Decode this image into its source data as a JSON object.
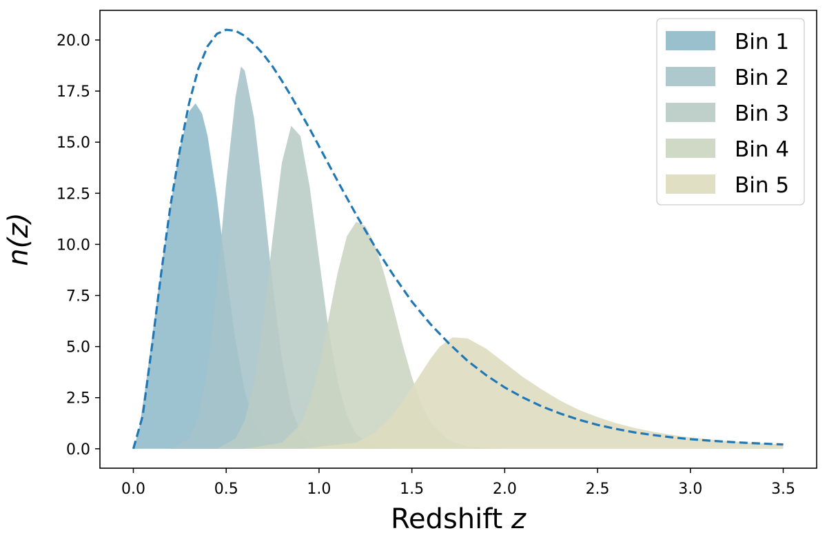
{
  "chart_data": {
    "type": "area",
    "xlabel": "Redshift",
    "xlabel_var": "z",
    "ylabel": "n(z)",
    "xlim": [
      -0.18,
      3.68
    ],
    "ylim": [
      -0.95,
      21.45
    ],
    "x_ticks": [
      0.0,
      0.5,
      1.0,
      1.5,
      2.0,
      2.5,
      3.0,
      3.5
    ],
    "x_tick_labels": [
      "0.0",
      "0.5",
      "1.0",
      "1.5",
      "2.0",
      "2.5",
      "3.0",
      "3.5"
    ],
    "y_ticks": [
      0.0,
      2.5,
      5.0,
      7.5,
      10.0,
      12.5,
      15.0,
      17.5,
      20.0
    ],
    "y_tick_labels": [
      "0.0",
      "2.5",
      "5.0",
      "7.5",
      "10.0",
      "12.5",
      "15.0",
      "17.5",
      "20.0"
    ],
    "grid": false,
    "legend_position": "top-right",
    "total_curve": {
      "style": "dashed",
      "color": "#1f77b4",
      "x": [
        0.0,
        0.05,
        0.1,
        0.15,
        0.2,
        0.25,
        0.3,
        0.35,
        0.4,
        0.45,
        0.5,
        0.55,
        0.6,
        0.65,
        0.7,
        0.75,
        0.8,
        0.85,
        0.9,
        0.95,
        1.0,
        1.1,
        1.2,
        1.3,
        1.4,
        1.5,
        1.6,
        1.7,
        1.8,
        1.9,
        2.0,
        2.1,
        2.2,
        2.3,
        2.4,
        2.5,
        2.6,
        2.7,
        2.8,
        2.9,
        3.0,
        3.1,
        3.2,
        3.3,
        3.4,
        3.5
      ],
      "y": [
        0.0,
        1.6,
        5.0,
        8.6,
        11.9,
        14.6,
        16.9,
        18.6,
        19.7,
        20.3,
        20.5,
        20.45,
        20.2,
        19.8,
        19.3,
        18.7,
        18.0,
        17.25,
        16.45,
        15.65,
        14.8,
        13.1,
        11.45,
        9.9,
        8.5,
        7.2,
        6.1,
        5.15,
        4.3,
        3.6,
        3.0,
        2.5,
        2.07,
        1.72,
        1.42,
        1.17,
        0.97,
        0.8,
        0.67,
        0.56,
        0.47,
        0.4,
        0.34,
        0.29,
        0.25,
        0.21
      ]
    },
    "series": [
      {
        "name": "Bin 1",
        "color": "#8fb9c9",
        "x": [
          0.0,
          0.03,
          0.06,
          0.1,
          0.15,
          0.2,
          0.25,
          0.3,
          0.335,
          0.37,
          0.4,
          0.45,
          0.5,
          0.55,
          0.6,
          0.65,
          0.7,
          0.8,
          0.9
        ],
        "values": [
          0.0,
          0.9,
          2.7,
          5.4,
          8.8,
          11.9,
          14.7,
          16.5,
          16.9,
          16.4,
          15.3,
          12.3,
          8.6,
          5.3,
          2.8,
          1.3,
          0.5,
          0.05,
          0.0
        ]
      },
      {
        "name": "Bin 2",
        "color": "#a5c3c8",
        "x": [
          0.2,
          0.3,
          0.35,
          0.4,
          0.45,
          0.5,
          0.55,
          0.58,
          0.6,
          0.65,
          0.7,
          0.75,
          0.8,
          0.85,
          0.9,
          0.95,
          1.0
        ],
        "values": [
          0.0,
          0.5,
          1.6,
          4.0,
          8.0,
          13.0,
          17.2,
          18.7,
          18.5,
          16.2,
          12.3,
          8.0,
          4.4,
          2.0,
          0.8,
          0.25,
          0.0
        ]
      },
      {
        "name": "Bin 3",
        "color": "#b8cbc5",
        "x": [
          0.45,
          0.55,
          0.6,
          0.65,
          0.7,
          0.75,
          0.8,
          0.85,
          0.9,
          0.95,
          1.0,
          1.05,
          1.1,
          1.15,
          1.2,
          1.3,
          1.4
        ],
        "values": [
          0.0,
          0.5,
          1.4,
          3.2,
          6.3,
          10.3,
          14.0,
          15.8,
          15.3,
          12.8,
          9.3,
          5.9,
          3.3,
          1.6,
          0.7,
          0.1,
          0.0
        ]
      },
      {
        "name": "Bin 4",
        "color": "#cbd4c0",
        "x": [
          0.6,
          0.8,
          0.9,
          0.95,
          1.0,
          1.05,
          1.1,
          1.15,
          1.2,
          1.25,
          1.3,
          1.35,
          1.4,
          1.45,
          1.5,
          1.55,
          1.6,
          1.7,
          1.8,
          2.0
        ],
        "values": [
          0.0,
          0.3,
          1.2,
          2.3,
          4.0,
          6.3,
          8.6,
          10.4,
          11.1,
          10.9,
          10.0,
          8.6,
          6.9,
          5.1,
          3.5,
          2.2,
          1.3,
          0.4,
          0.1,
          0.0
        ]
      },
      {
        "name": "Bin 5",
        "color": "#dddcbe",
        "x": [
          0.9,
          1.2,
          1.3,
          1.4,
          1.5,
          1.6,
          1.65,
          1.72,
          1.8,
          1.9,
          2.0,
          2.1,
          2.2,
          2.3,
          2.4,
          2.5,
          2.6,
          2.7,
          2.8,
          2.9,
          3.0,
          3.1,
          3.2,
          3.3,
          3.4,
          3.5
        ],
        "values": [
          0.0,
          0.3,
          0.8,
          1.7,
          3.0,
          4.4,
          5.0,
          5.45,
          5.4,
          4.9,
          4.2,
          3.5,
          2.9,
          2.35,
          1.9,
          1.55,
          1.25,
          1.02,
          0.83,
          0.68,
          0.56,
          0.46,
          0.38,
          0.31,
          0.26,
          0.21
        ]
      }
    ]
  }
}
